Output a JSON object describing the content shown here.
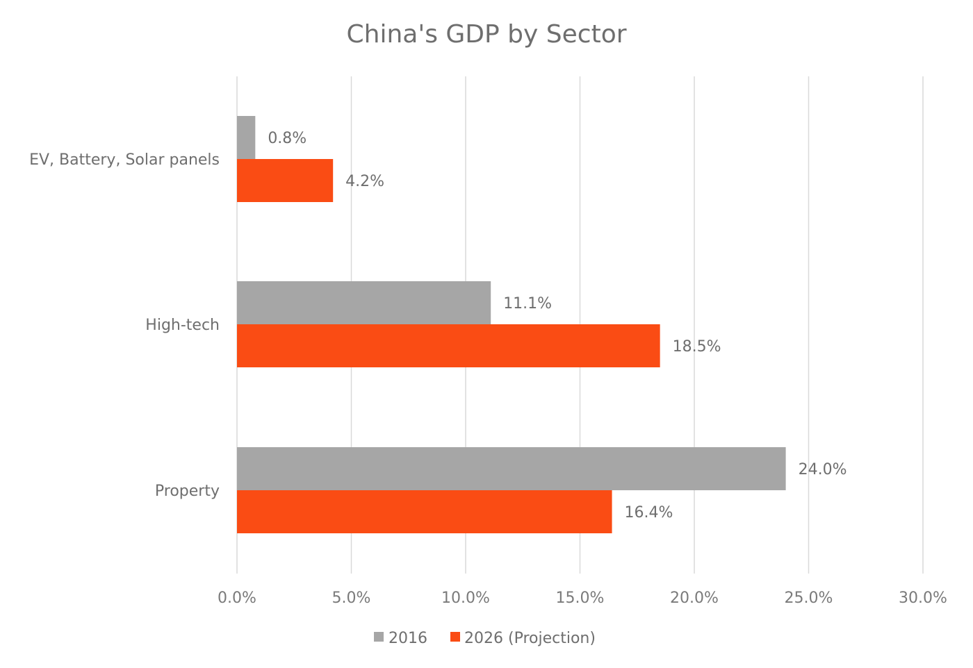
{
  "chart_data": {
    "type": "bar",
    "orientation": "horizontal",
    "title": "China's GDP by Sector",
    "categories": [
      "EV, Battery, Solar panels",
      "High-tech",
      "Property"
    ],
    "series": [
      {
        "name": "2016",
        "color": "#a6a6a6",
        "values": [
          0.8,
          11.1,
          24.0
        ],
        "labels": [
          "0.8%",
          "11.1%",
          "24.0%"
        ]
      },
      {
        "name": "2026 (Projection)",
        "color": "#fa4c14",
        "values": [
          4.2,
          18.5,
          16.4
        ],
        "labels": [
          "4.2%",
          "18.5%",
          "16.4%"
        ]
      }
    ],
    "xlim": [
      0,
      30
    ],
    "xticks": [
      0,
      5,
      10,
      15,
      20,
      25,
      30
    ],
    "xtick_labels": [
      "0.0%",
      "5.0%",
      "10.0%",
      "15.0%",
      "20.0%",
      "25.0%",
      "30.0%"
    ],
    "grid": "vertical",
    "legend": "bottom-center",
    "data_labels": "outside-end"
  }
}
